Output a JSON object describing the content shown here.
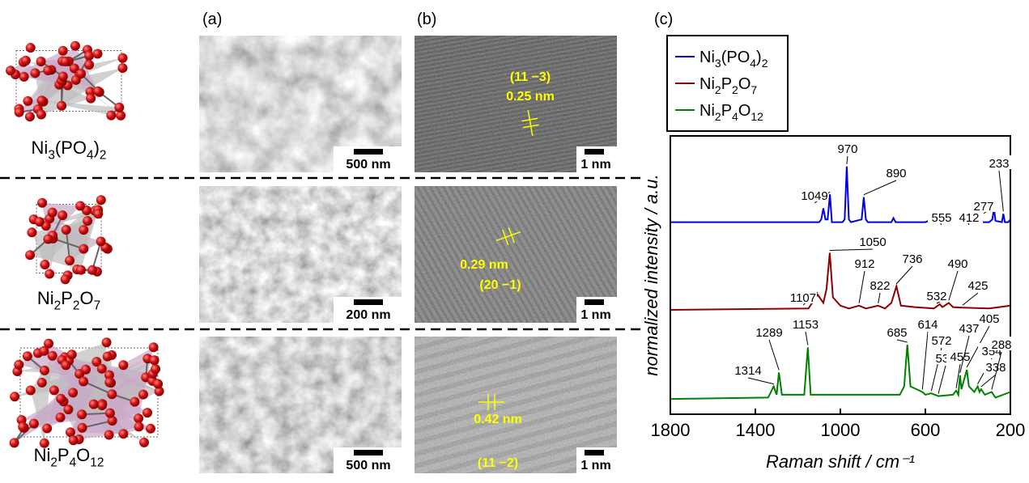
{
  "panel_labels": [
    "(a)",
    "(b)",
    "(c)"
  ],
  "compounds": [
    {
      "name": [
        "Ni",
        "3",
        "(PO",
        "4",
        ")",
        "2"
      ],
      "sem_scale": "500 nm",
      "tem_scale": "1 nm",
      "tem_annotation": [
        "(11 −3)",
        "0.25 nm"
      ]
    },
    {
      "name": [
        "Ni",
        "2",
        "P",
        "2",
        "O",
        "7"
      ],
      "sem_scale": "200 nm",
      "tem_scale": "1 nm",
      "tem_annotation": [
        "0.29 nm",
        "(20 −1)"
      ]
    },
    {
      "name": [
        "Ni",
        "2",
        "P",
        "4",
        "O",
        "12"
      ],
      "sem_scale": "500 nm",
      "tem_scale": "1 nm",
      "tem_annotation": [
        "0.42 nm",
        "(11 −2)"
      ]
    }
  ],
  "chart_data": {
    "type": "line",
    "xlabel": "Raman shift / cm⁻¹",
    "ylabel": "normalized intensity / a.u.",
    "xlim": [
      1800,
      200
    ],
    "xticks": [
      1800,
      1400,
      1000,
      600,
      200
    ],
    "ylim": [
      0,
      100
    ],
    "series": [
      {
        "name": [
          "Ni",
          "3",
          "(PO",
          "4",
          ")",
          "2"
        ],
        "color": "#0000e6",
        "x": [
          1800,
          1100,
          1090,
          1080,
          1070,
          1060,
          1049,
          1040,
          990,
          980,
          970,
          960,
          950,
          900,
          890,
          880,
          870,
          760,
          750,
          740,
          600,
          555,
          540,
          430,
          412,
          400,
          300,
          285,
          277,
          270,
          240,
          233,
          226,
          210,
          200
        ],
        "values": [
          69,
          69,
          70,
          74,
          70,
          70,
          79,
          69,
          69,
          70,
          89,
          70,
          69,
          70,
          78,
          70,
          69,
          69,
          70.5,
          69,
          69,
          70.5,
          69,
          69,
          70.3,
          69,
          69,
          70,
          74,
          69.5,
          69,
          72,
          69,
          69,
          70
        ],
        "peak_labels": [
          1049,
          970,
          890,
          555,
          412,
          277,
          233
        ]
      },
      {
        "name": [
          "Ni",
          "2",
          "P",
          "2",
          "O",
          "7"
        ],
        "color": "#8b0000",
        "x": [
          1800,
          1150,
          1107,
          1080,
          1065,
          1050,
          1035,
          1000,
          960,
          912,
          880,
          822,
          790,
          760,
          736,
          715,
          650,
          560,
          532,
          520,
          490,
          470,
          425,
          300,
          200
        ],
        "values": [
          37.5,
          38,
          43,
          40,
          45,
          58,
          42,
          39,
          38,
          39,
          38,
          39,
          38,
          40,
          46,
          39,
          38.5,
          38,
          39.5,
          38.5,
          40,
          38.5,
          38.3,
          38,
          39
        ],
        "peak_labels": [
          1107,
          1050,
          912,
          822,
          736,
          532,
          490,
          425
        ]
      },
      {
        "name": [
          "Ni",
          "2",
          "P",
          "4",
          "O",
          "12"
        ],
        "color": "#008000",
        "x": [
          1800,
          1340,
          1314,
          1300,
          1289,
          1275,
          1170,
          1153,
          1140,
          720,
          700,
          685,
          670,
          614,
          600,
          572,
          539,
          470,
          455,
          445,
          437,
          430,
          405,
          395,
          370,
          354,
          345,
          338,
          320,
          288,
          270,
          200
        ],
        "values": [
          5.5,
          6,
          10,
          7,
          15,
          7,
          7,
          24,
          7,
          7,
          10,
          25,
          10,
          8,
          7,
          7.5,
          6.5,
          7,
          8.5,
          7,
          14,
          9,
          16,
          10,
          8,
          10,
          8,
          9,
          7,
          8,
          6,
          8
        ],
        "peak_labels": [
          1314,
          1289,
          1153,
          685,
          614,
          572,
          539,
          455,
          437,
          405,
          354,
          338,
          288
        ]
      }
    ]
  }
}
